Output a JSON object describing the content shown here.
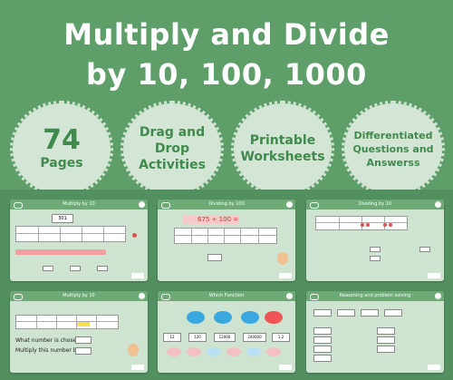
{
  "title": {
    "line1": "Multiply and Divide",
    "line2": "by 10, 100, 1000"
  },
  "badges": [
    {
      "big": "74",
      "small": "Pages"
    },
    {
      "lines": [
        "Drag and",
        "Drop",
        "Activities"
      ]
    },
    {
      "lines": [
        "Printable",
        "Worksheets"
      ]
    },
    {
      "lines": [
        "Differentiated",
        "Questions and",
        "Answerss"
      ]
    }
  ],
  "slides": [
    {
      "title": "Multiply by 10",
      "number": "301"
    },
    {
      "title": "Dividing by 100",
      "equation": "675 ÷ 100 ="
    },
    {
      "title": "Dividing by 10"
    },
    {
      "title": "Multiply by 10",
      "question": "What number is chosen?",
      "prompt": "Multiply this number by 10."
    },
    {
      "title": "Which Function",
      "values": [
        "12",
        "120",
        "12000",
        "240000",
        "1.2"
      ]
    },
    {
      "title": "Reasoning and problem solving"
    }
  ],
  "colors": {
    "background": "#5e9e69",
    "badge": "#d3e6d5",
    "badge_text": "#3f8a4c",
    "slide": "#cfe3d1"
  }
}
